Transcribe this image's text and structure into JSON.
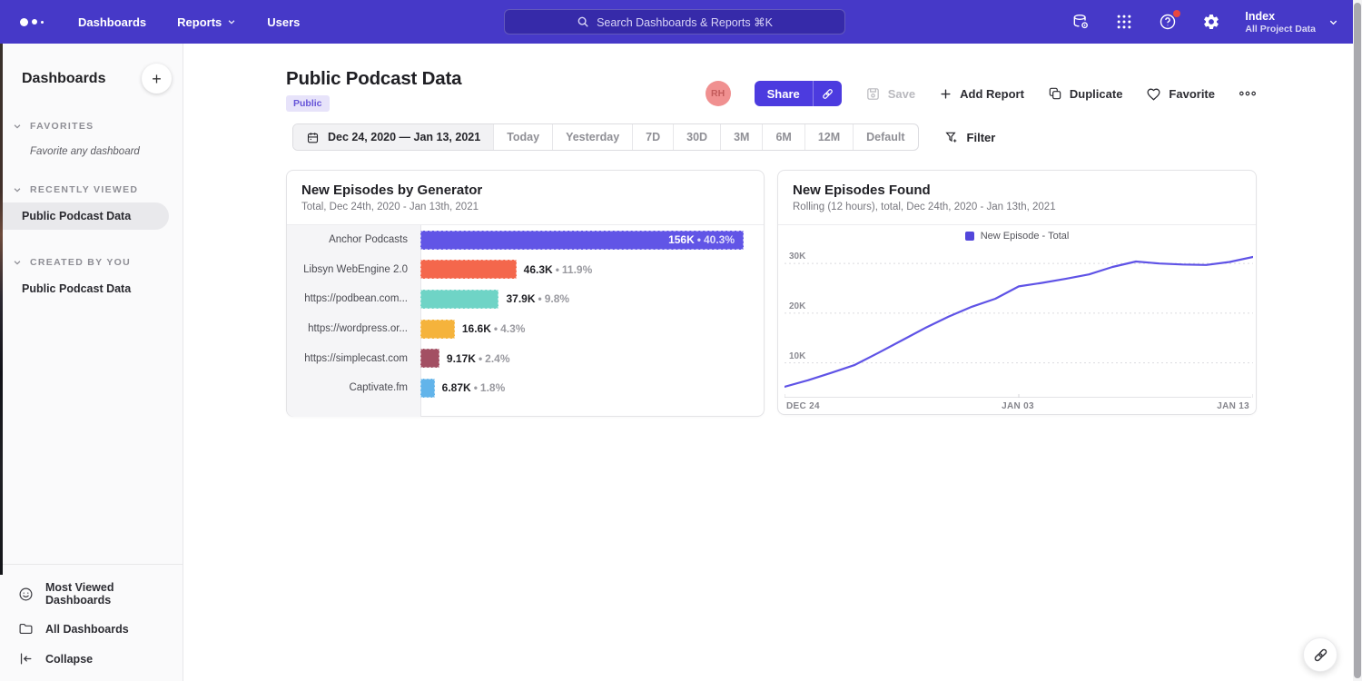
{
  "nav": {
    "items": [
      {
        "label": "Dashboards",
        "has_chevron": false
      },
      {
        "label": "Reports",
        "has_chevron": true
      },
      {
        "label": "Users",
        "has_chevron": false
      }
    ],
    "search_placeholder": "Search Dashboards & Reports ⌘K",
    "project": {
      "name": "Index",
      "sub": "All Project Data"
    },
    "icon_names": [
      "data-source-icon",
      "apps-grid-icon",
      "help-icon",
      "gear-icon"
    ]
  },
  "sidebar": {
    "title": "Dashboards",
    "add_button": "+",
    "sections": [
      {
        "label": "FAVORITES",
        "empty_text": "Favorite any dashboard"
      },
      {
        "label": "RECENTLY VIEWED",
        "item": "Public Podcast Data"
      },
      {
        "label": "CREATED BY YOU",
        "item": "Public Podcast Data"
      }
    ],
    "footer": [
      {
        "icon": "smiley-icon",
        "label": "Most Viewed Dashboards"
      },
      {
        "icon": "folder-icon",
        "label": "All Dashboards"
      },
      {
        "icon": "collapse-icon",
        "label": "Collapse"
      }
    ]
  },
  "header": {
    "title": "Public Podcast Data",
    "badge": "Public",
    "avatar_initials": "RH",
    "share_label": "Share",
    "save_label": "Save",
    "add_report_label": "Add Report",
    "add_report_plus": "+",
    "duplicate_label": "Duplicate",
    "favorite_label": "Favorite",
    "more_label": "ooo"
  },
  "toolbar": {
    "date_range": "Dec 24, 2020 — Jan 13, 2021",
    "presets": [
      "Today",
      "Yesterday",
      "7D",
      "30D",
      "3M",
      "6M",
      "12M",
      "Default"
    ],
    "filter_label": "Filter"
  },
  "colors": {
    "nav_purple": "#4639C8",
    "accent_purple": "#4C3BDF",
    "line_purple": "#5F53E6",
    "legend_purple": "#5246DB",
    "avatar_pink": "#F09090"
  },
  "chart_data": [
    {
      "type": "bar",
      "orientation": "horizontal",
      "title": "New Episodes by Generator",
      "subtitle": "Total, Dec 24th, 2020 - Jan 13th, 2021",
      "categories": [
        "Anchor Podcasts",
        "Libsyn WebEngine 2.0",
        "https://podbean.com...",
        "https://wordpress.or...",
        "https://simplecast.com",
        "Captivate.fm"
      ],
      "values": [
        156000,
        46300,
        37900,
        16600,
        9170,
        6870
      ],
      "value_labels": [
        "156K",
        "46.3K",
        "37.9K",
        "16.6K",
        "9.17K",
        "6.87K"
      ],
      "pct_labels": [
        "40.3%",
        "11.9%",
        "9.8%",
        "4.3%",
        "2.4%",
        "1.8%"
      ],
      "colors": [
        "#6155E6",
        "#F4674C",
        "#6FD4C6",
        "#F5B33C",
        "#A34F63",
        "#62B4EA"
      ],
      "xmax": 156000,
      "label_inside_first": true
    },
    {
      "type": "line",
      "title": "New Episodes Found",
      "subtitle": "Rolling (12 hours), total, Dec 24th, 2020 - Jan 13th, 2021",
      "legend": [
        {
          "label": "New Episode - Total",
          "color": "#5246DB"
        }
      ],
      "x_ticks": [
        "DEC 24",
        "JAN 03",
        "JAN 13"
      ],
      "y_ticks": [
        "10K",
        "20K",
        "30K"
      ],
      "y_gridlines": [
        10000,
        20000,
        30000
      ],
      "ylim": [
        3000,
        33500
      ],
      "grid": "dotted",
      "legend_position": "top-center",
      "values": [
        5200,
        6500,
        8000,
        9600,
        12000,
        14500,
        17000,
        19300,
        21300,
        22900,
        25400,
        26100,
        26900,
        27800,
        29300,
        30400,
        30000,
        29800,
        29700,
        30300,
        31300
      ],
      "line_color": "#5F53E6"
    }
  ],
  "fab": {
    "icon": "link-icon"
  }
}
